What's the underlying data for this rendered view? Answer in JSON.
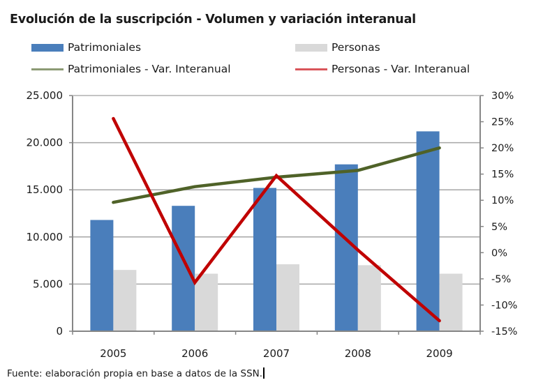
{
  "title": "Evolución de la suscripción - Volumen y variación interanual",
  "legend": [
    {
      "label": "Patrimoniales",
      "type": "bar",
      "color": "#4a7ebb"
    },
    {
      "label": "Personas",
      "type": "bar",
      "color": "#d9d9d9"
    },
    {
      "label": "Patrimoniales - Var. Interanual",
      "type": "line",
      "color": "#4f6228"
    },
    {
      "label": "Personas - Var. Interanual",
      "type": "line",
      "color": "#c00000"
    }
  ],
  "footer": "Fuente: elaboración propia en base a datos de la SSN.",
  "chart_data": {
    "type": "bar",
    "title": "Evolución de la suscripción - Volumen y variación interanual",
    "categories": [
      "2005",
      "2006",
      "2007",
      "2008",
      "2009"
    ],
    "series": [
      {
        "name": "Patrimoniales",
        "type": "bar",
        "axis": "left",
        "color": "#4a7ebb",
        "values": [
          11800,
          13300,
          15200,
          17700,
          21200
        ]
      },
      {
        "name": "Personas",
        "type": "bar",
        "axis": "left",
        "color": "#d9d9d9",
        "values": [
          6500,
          6100,
          7100,
          7000,
          6100
        ]
      },
      {
        "name": "Patrimoniales - Var. Interanual",
        "type": "line",
        "axis": "right",
        "color": "#4f6228",
        "values": [
          9.6,
          12.6,
          14.4,
          15.7,
          20.0
        ]
      },
      {
        "name": "Personas - Var. Interanual",
        "type": "line",
        "axis": "right",
        "color": "#c00000",
        "values": [
          25.6,
          -5.7,
          14.7,
          0.5,
          -13.0
        ]
      }
    ],
    "xlabel": "",
    "ylabel": "",
    "ylim": [
      0,
      25000
    ],
    "yticks": [
      "0",
      "5.000",
      "10.000",
      "15.000",
      "20.000",
      "25.000"
    ],
    "y2lim": [
      -15,
      30
    ],
    "y2ticks": [
      "-15%",
      "-10%",
      "-5%",
      "0%",
      "5%",
      "10%",
      "15%",
      "20%",
      "25%",
      "30%"
    ],
    "grid": true,
    "legend_position": "top"
  }
}
